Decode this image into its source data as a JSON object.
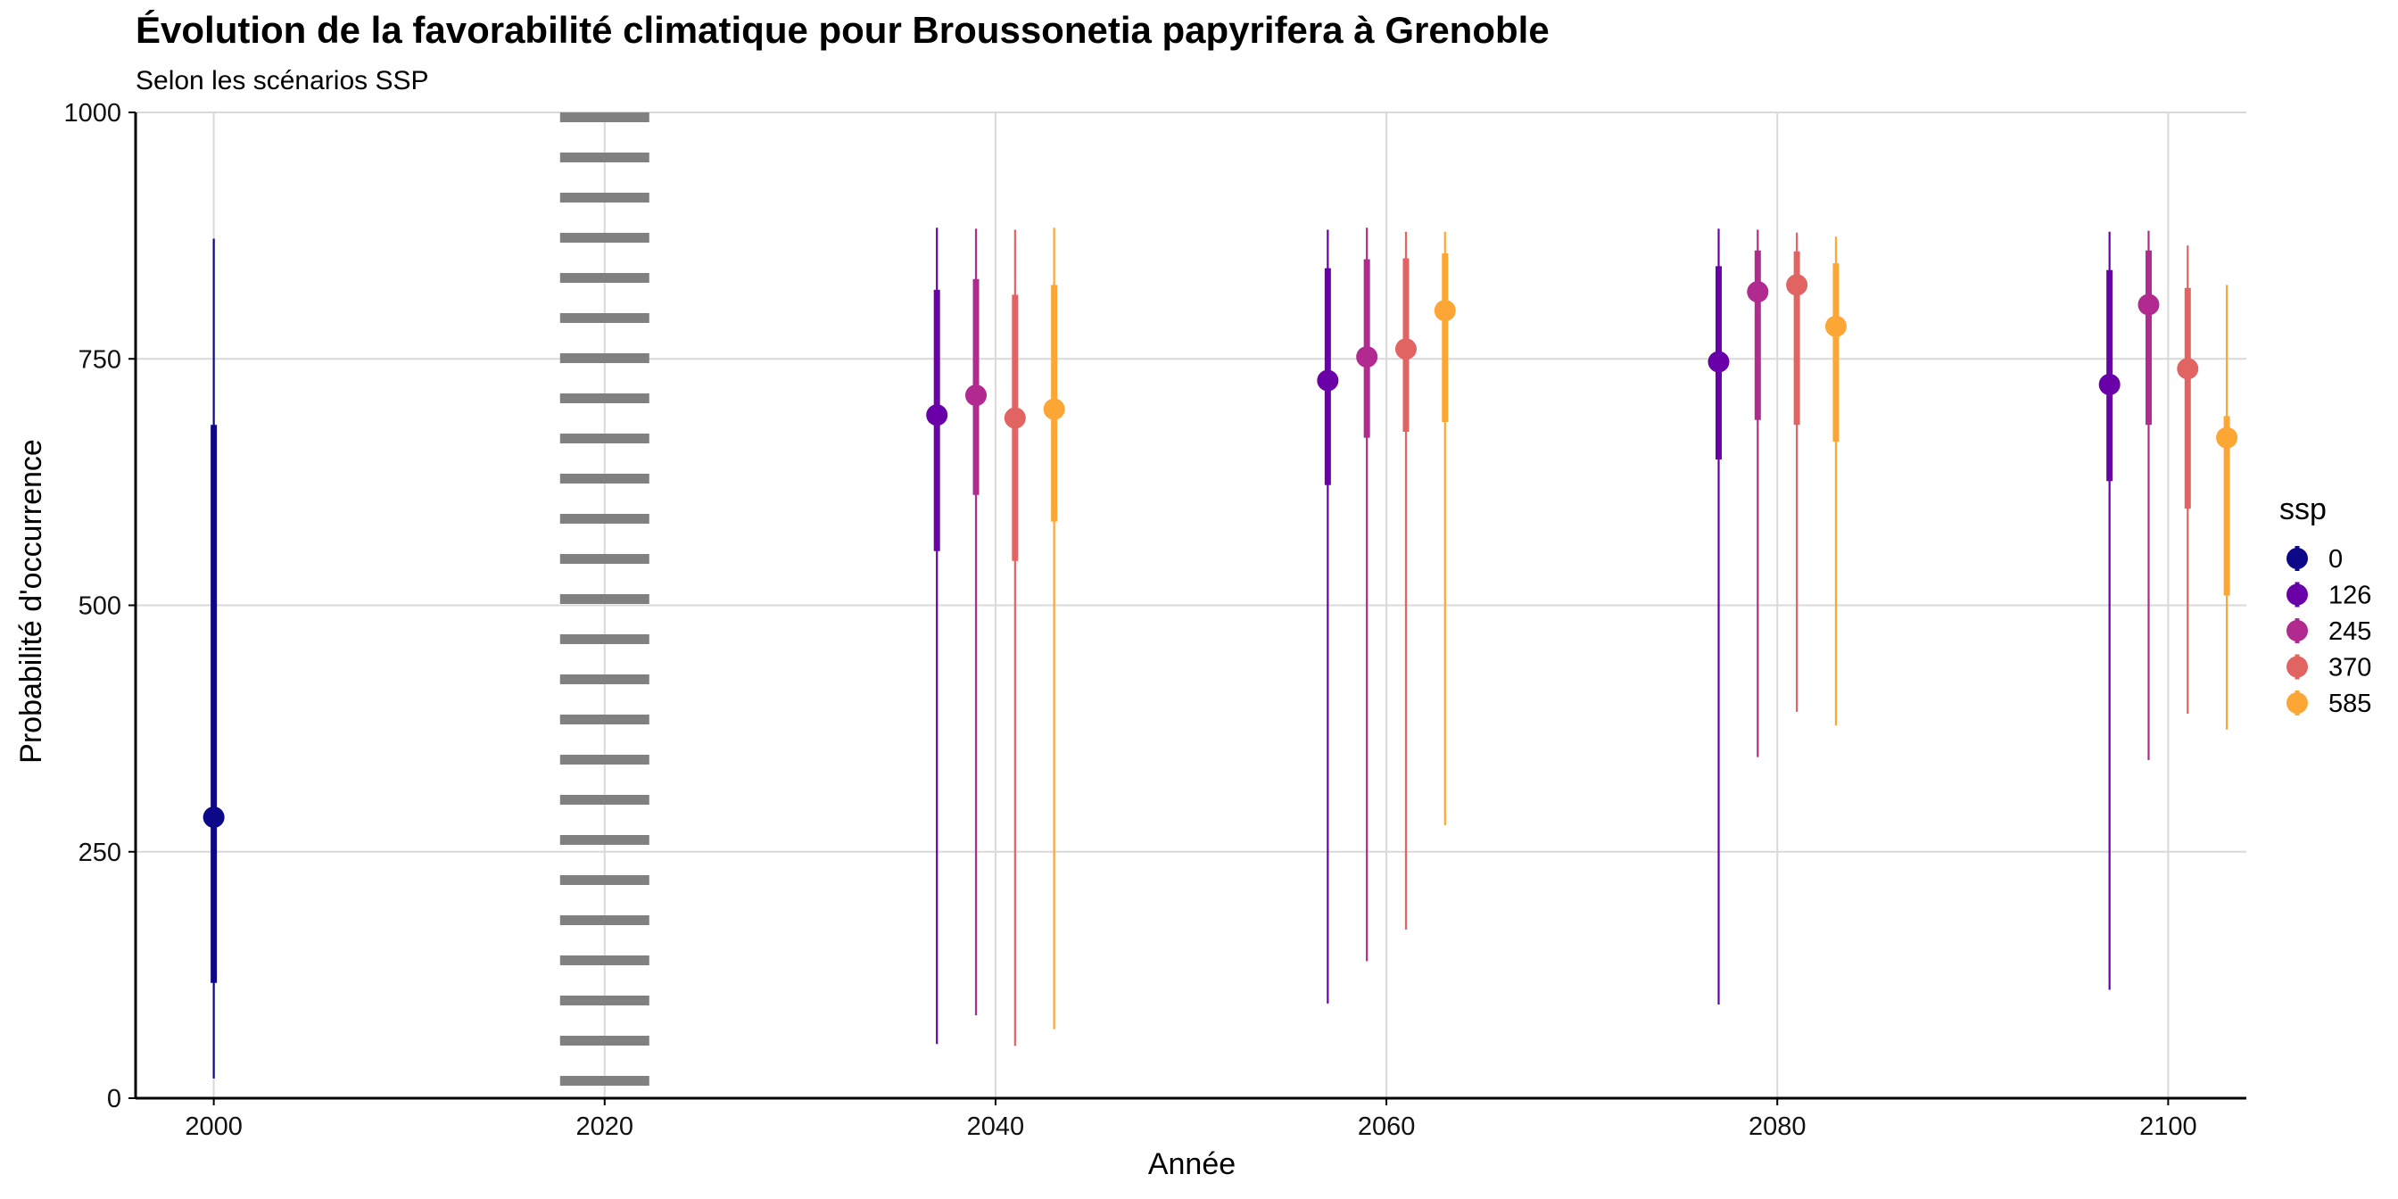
{
  "chart_data": {
    "type": "pointrange",
    "title": "Évolution de la favorabilité climatique pour Broussonetia papyrifera à Grenoble",
    "subtitle": "Selon les scénarios SSP",
    "xlabel": "Année",
    "ylabel": "Probabilité d'occurrence",
    "xlim": [
      1996,
      2104
    ],
    "ylim": [
      0,
      1000
    ],
    "x_ticks": [
      2000,
      2020,
      2040,
      2060,
      2080,
      2100
    ],
    "y_ticks": [
      0,
      250,
      500,
      750,
      1000
    ],
    "grid": "major",
    "reference_line": {
      "x": 2020,
      "style": "dotted",
      "color": "#808080"
    },
    "legend": {
      "title": "ssp",
      "position": "right"
    },
    "series": [
      {
        "name": "0",
        "color": "#0d0887",
        "points": [
          {
            "x": 2000,
            "y": 285,
            "inner": [
              117,
              683
            ],
            "outer": [
              20,
              872
            ]
          }
        ]
      },
      {
        "name": "126",
        "color": "#6a00a8",
        "points": [
          {
            "x": 2037,
            "y": 693,
            "inner": [
              555,
              820
            ],
            "outer": [
              55,
              883
            ]
          },
          {
            "x": 2057,
            "y": 728,
            "inner": [
              622,
              842
            ],
            "outer": [
              96,
              881
            ]
          },
          {
            "x": 2077,
            "y": 747,
            "inner": [
              648,
              844
            ],
            "outer": [
              95,
              882
            ]
          },
          {
            "x": 2097,
            "y": 724,
            "inner": [
              626,
              840
            ],
            "outer": [
              110,
              879
            ]
          }
        ]
      },
      {
        "name": "245",
        "color": "#b12a90",
        "points": [
          {
            "x": 2039,
            "y": 713,
            "inner": [
              612,
              831
            ],
            "outer": [
              84,
              882
            ]
          },
          {
            "x": 2059,
            "y": 752,
            "inner": [
              670,
              851
            ],
            "outer": [
              139,
              883
            ]
          },
          {
            "x": 2079,
            "y": 818,
            "inner": [
              688,
              860
            ],
            "outer": [
              346,
              881
            ]
          },
          {
            "x": 2099,
            "y": 805,
            "inner": [
              683,
              860
            ],
            "outer": [
              343,
              880
            ]
          }
        ]
      },
      {
        "name": "370",
        "color": "#e16462",
        "points": [
          {
            "x": 2041,
            "y": 690,
            "inner": [
              545,
              815
            ],
            "outer": [
              53,
              881
            ]
          },
          {
            "x": 2061,
            "y": 760,
            "inner": [
              676,
              852
            ],
            "outer": [
              171,
              879
            ]
          },
          {
            "x": 2081,
            "y": 825,
            "inner": [
              683,
              859
            ],
            "outer": [
              392,
              878
            ]
          },
          {
            "x": 2101,
            "y": 740,
            "inner": [
              598,
              822
            ],
            "outer": [
              390,
              865
            ]
          }
        ]
      },
      {
        "name": "585",
        "color": "#fca636",
        "points": [
          {
            "x": 2043,
            "y": 699,
            "inner": [
              585,
              825
            ],
            "outer": [
              70,
              883
            ]
          },
          {
            "x": 2063,
            "y": 799,
            "inner": [
              686,
              857
            ],
            "outer": [
              277,
              879
            ]
          },
          {
            "x": 2083,
            "y": 783,
            "inner": [
              666,
              847
            ],
            "outer": [
              378,
              874
            ]
          },
          {
            "x": 2103,
            "y": 670,
            "inner": [
              510,
              692
            ],
            "outer": [
              374,
              825
            ]
          }
        ]
      }
    ]
  }
}
